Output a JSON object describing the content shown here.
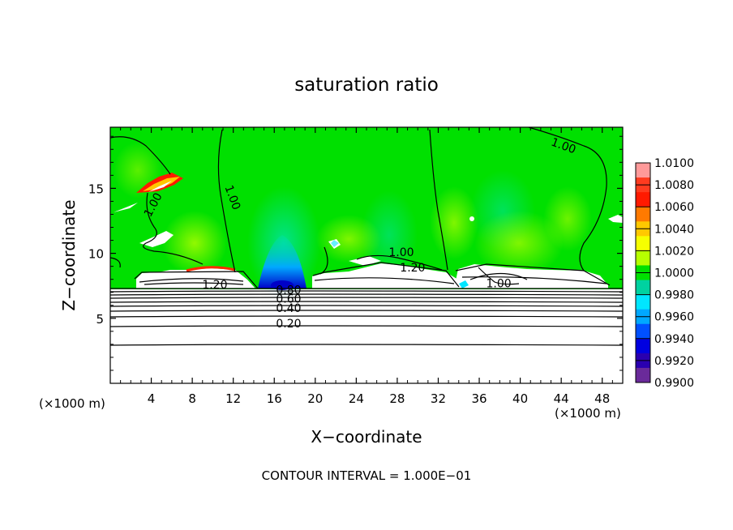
{
  "chart_data": {
    "type": "heatmap",
    "title": "saturation ratio",
    "xlabel": "X−coordinate",
    "ylabel": "Z−coordinate",
    "x_unit_left": "(×1000 m)",
    "x_unit_right": "(×1000 m)",
    "xlim": [
      0,
      50
    ],
    "ylim": [
      0,
      19.7
    ],
    "x_ticks": [
      "4",
      "8",
      "12",
      "16",
      "20",
      "24",
      "28",
      "32",
      "36",
      "40",
      "44",
      "48"
    ],
    "x_tick_values": [
      4,
      8,
      12,
      16,
      20,
      24,
      28,
      32,
      36,
      40,
      44,
      48
    ],
    "y_ticks": [
      "5",
      "10",
      "15"
    ],
    "y_tick_values": [
      5,
      10,
      15
    ],
    "footer": "CONTOUR INTERVAL = 1.000E−01",
    "colorbar": {
      "labels": [
        "1.0100",
        "1.0080",
        "1.0060",
        "1.0040",
        "1.0020",
        "1.0000",
        "0.9980",
        "0.9960",
        "0.9940",
        "0.9920",
        "0.9900"
      ],
      "colors": [
        "#ff9a9a",
        "#ff3b1f",
        "#ff1a00",
        "#ff7a00",
        "#ffc800",
        "#f6ff00",
        "#b6ff00",
        "#00e000",
        "#00d2a0",
        "#00e6ff",
        "#00a8ff",
        "#0050ff",
        "#0000e0",
        "#2a00b0",
        "#6a2a9a"
      ]
    },
    "contour_labels": [
      {
        "text": "1.00",
        "x": 4.5,
        "z": 13.6,
        "rot": -62
      },
      {
        "text": "1.00",
        "x": 11.6,
        "z": 14.2,
        "rot": 70
      },
      {
        "text": "1.00",
        "x": 44.1,
        "z": 18.0,
        "rot": 20
      },
      {
        "text": "1.00",
        "x": 28.4,
        "z": 9.8,
        "rot": 0
      },
      {
        "text": "1.20",
        "x": 29.5,
        "z": 8.6,
        "rot": 0
      },
      {
        "text": "1.20",
        "x": 10.2,
        "z": 7.3,
        "rot": 0
      },
      {
        "text": "1.00",
        "x": 37.9,
        "z": 7.4,
        "rot": 0
      },
      {
        "text": "0.80",
        "x": 17.4,
        "z": 6.9,
        "rot": 0
      },
      {
        "text": "0.60",
        "x": 17.4,
        "z": 6.2,
        "rot": 0
      },
      {
        "text": "0.40",
        "x": 17.4,
        "z": 5.5,
        "rot": 0
      },
      {
        "text": "0.20",
        "x": 17.4,
        "z": 4.3,
        "rot": 0
      }
    ]
  }
}
